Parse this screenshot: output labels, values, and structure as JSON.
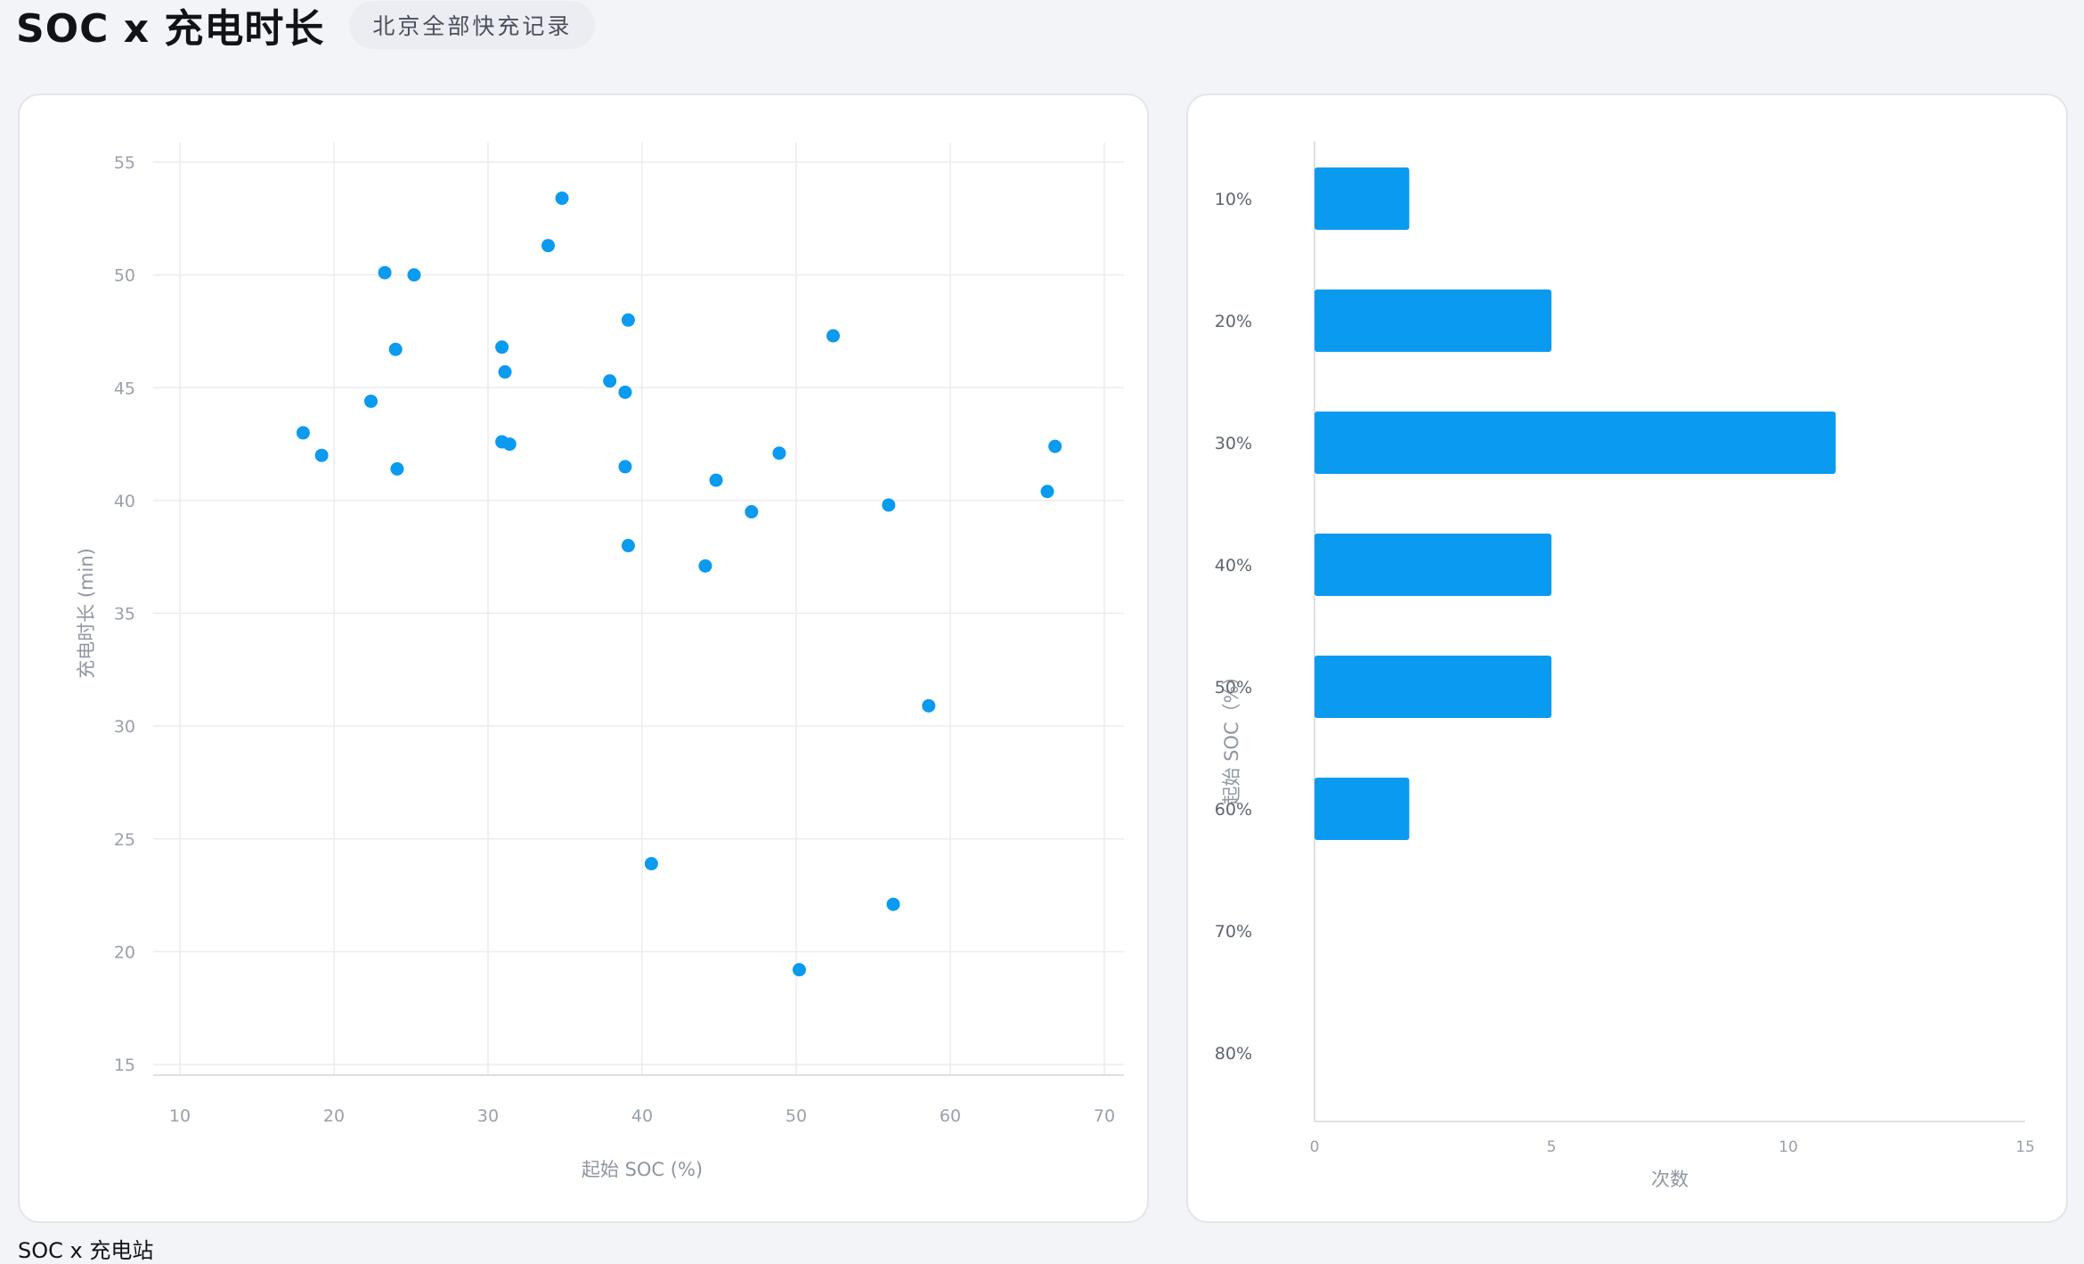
{
  "header": {
    "title": "SOC x 充电时长",
    "subtitle": "北京全部快充记录"
  },
  "chart_data": [
    {
      "type": "scatter",
      "xlabel": "起始 SOC (%)",
      "ylabel": "充电时长 (min)",
      "xlim": [
        10,
        70
      ],
      "ylim": [
        15,
        55
      ],
      "xticks": [
        "10",
        "20",
        "30",
        "40",
        "50",
        "60",
        "70"
      ],
      "yticks": [
        "15",
        "20",
        "25",
        "30",
        "35",
        "40",
        "45",
        "50",
        "55"
      ],
      "grid": true,
      "color": "#0a9bf0",
      "points": [
        {
          "x": 18.0,
          "y": 43.0
        },
        {
          "x": 19.2,
          "y": 42.0
        },
        {
          "x": 22.4,
          "y": 44.4
        },
        {
          "x": 23.3,
          "y": 50.1
        },
        {
          "x": 24.0,
          "y": 46.7
        },
        {
          "x": 24.1,
          "y": 41.4
        },
        {
          "x": 25.2,
          "y": 50.0
        },
        {
          "x": 30.9,
          "y": 46.8
        },
        {
          "x": 30.9,
          "y": 42.6
        },
        {
          "x": 31.1,
          "y": 45.7
        },
        {
          "x": 31.4,
          "y": 42.5
        },
        {
          "x": 33.9,
          "y": 51.3
        },
        {
          "x": 34.8,
          "y": 53.4
        },
        {
          "x": 37.9,
          "y": 45.3
        },
        {
          "x": 38.9,
          "y": 44.8
        },
        {
          "x": 38.9,
          "y": 41.5
        },
        {
          "x": 39.1,
          "y": 48.0
        },
        {
          "x": 39.1,
          "y": 38.0
        },
        {
          "x": 40.6,
          "y": 23.9
        },
        {
          "x": 44.1,
          "y": 37.1
        },
        {
          "x": 44.8,
          "y": 40.9
        },
        {
          "x": 47.1,
          "y": 39.5
        },
        {
          "x": 48.9,
          "y": 42.1
        },
        {
          "x": 50.2,
          "y": 19.2
        },
        {
          "x": 52.4,
          "y": 47.3
        },
        {
          "x": 56.0,
          "y": 39.8
        },
        {
          "x": 56.3,
          "y": 22.1
        },
        {
          "x": 58.6,
          "y": 30.9
        },
        {
          "x": 66.3,
          "y": 40.4
        },
        {
          "x": 66.8,
          "y": 42.4
        }
      ]
    },
    {
      "type": "bar",
      "orientation": "horizontal",
      "xlabel": "次数",
      "ylabel": "起始 SOC（%）",
      "xlim": [
        0,
        15
      ],
      "xticks": [
        "0",
        "5",
        "10",
        "15"
      ],
      "categories": [
        "10%",
        "20%",
        "30%",
        "40%",
        "50%",
        "60%",
        "70%",
        "80%"
      ],
      "values": [
        2,
        5,
        11,
        5,
        5,
        2,
        0,
        0
      ],
      "grid": false,
      "color": "#0a9bf0"
    }
  ],
  "footer": {
    "text": "SOC x 充电站"
  }
}
